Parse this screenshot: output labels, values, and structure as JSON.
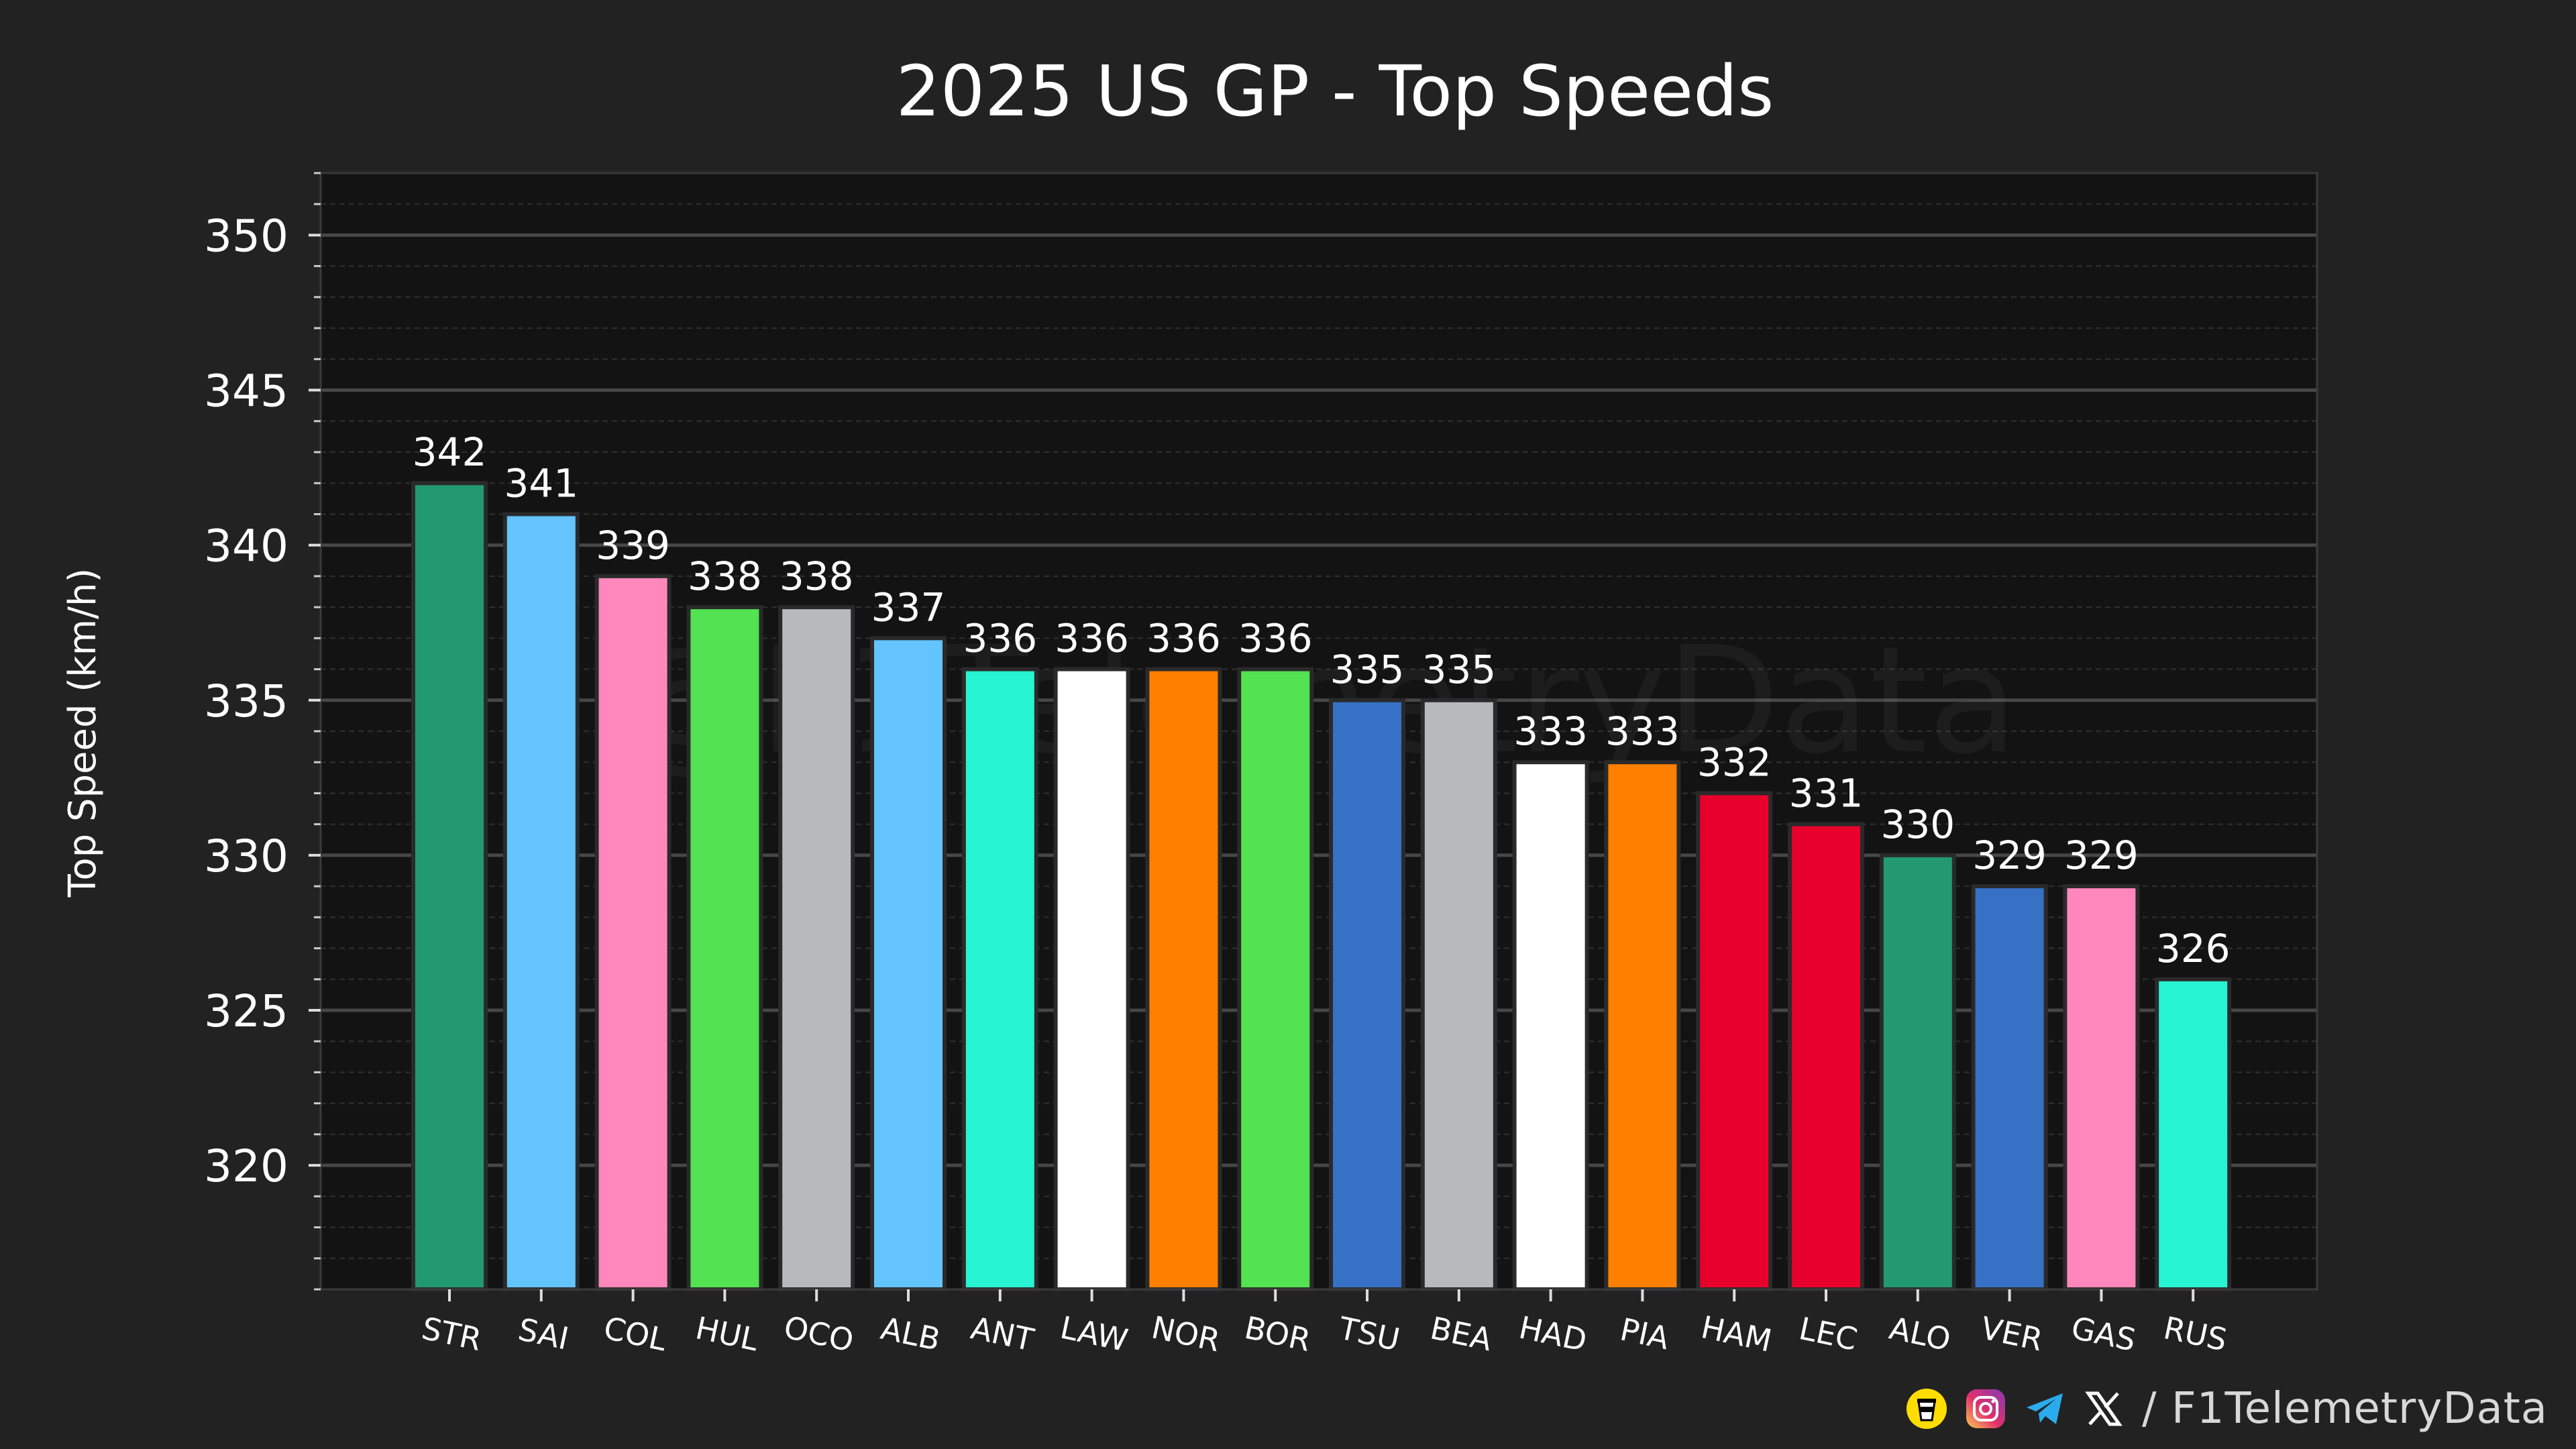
{
  "chart_data": {
    "type": "bar",
    "title": "2025 US GP - Top Speeds",
    "xlabel": "",
    "ylabel": "Top Speed (km/h)",
    "ylim": [
      316,
      352
    ],
    "yticks": [
      320,
      325,
      330,
      335,
      340,
      345,
      350
    ],
    "grid": true,
    "legend": "none",
    "categories": [
      "STR",
      "SAI",
      "COL",
      "HUL",
      "OCO",
      "ALB",
      "ANT",
      "LAW",
      "NOR",
      "BOR",
      "TSU",
      "BEA",
      "HAD",
      "PIA",
      "HAM",
      "LEC",
      "ALO",
      "VER",
      "GAS",
      "RUS"
    ],
    "values": [
      342,
      341,
      339,
      338,
      338,
      337,
      336,
      336,
      336,
      336,
      335,
      335,
      333,
      333,
      332,
      331,
      330,
      329,
      329,
      326
    ],
    "colors": [
      "#229971",
      "#64C4FF",
      "#FF87BC",
      "#52E252",
      "#B6BABD",
      "#64C4FF",
      "#27F4D2",
      "#FFFFFF",
      "#FF8000",
      "#52E252",
      "#3671C6",
      "#B6BABD",
      "#FFFFFF",
      "#FF8000",
      "#E8002D",
      "#E8002D",
      "#229971",
      "#3671C6",
      "#FF87BC",
      "#27F4D2"
    ]
  },
  "watermark": "@F1TelemetryData",
  "footer": {
    "handle": "/ F1TelemetryData",
    "icons": [
      "buy-me-a-coffee-icon",
      "instagram-icon",
      "telegram-icon",
      "x-icon"
    ]
  },
  "colors": {
    "background": "#222222",
    "plot_background": "#131313",
    "grid_major": "#444444",
    "grid_minor": "#2f2f2f",
    "text": "#ffffff"
  }
}
